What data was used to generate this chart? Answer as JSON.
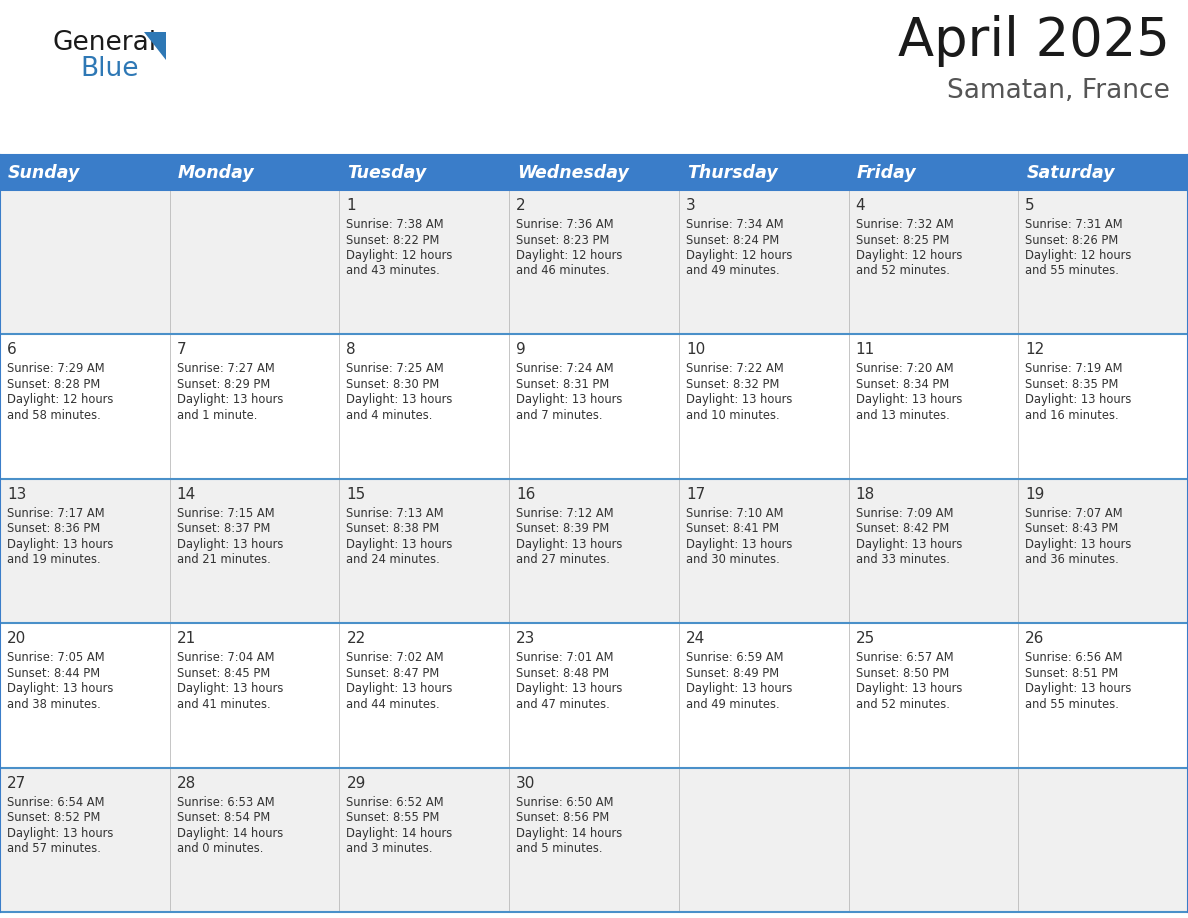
{
  "title": "April 2025",
  "subtitle": "Samatan, France",
  "header_bg_color": "#3A7DC9",
  "header_text_color": "#FFFFFF",
  "row_bg_even": "#F0F0F0",
  "row_bg_odd": "#FFFFFF",
  "border_color": "#3A7DC9",
  "row_divider_color": "#4A90C9",
  "col_divider_color": "#BBBBBB",
  "day_headers": [
    "Sunday",
    "Monday",
    "Tuesday",
    "Wednesday",
    "Thursday",
    "Friday",
    "Saturday"
  ],
  "days": [
    {
      "day": 1,
      "col": 2,
      "row": 0,
      "sunrise": "7:38 AM",
      "sunset": "8:22 PM",
      "daylight_line1": "12 hours",
      "daylight_line2": "and 43 minutes."
    },
    {
      "day": 2,
      "col": 3,
      "row": 0,
      "sunrise": "7:36 AM",
      "sunset": "8:23 PM",
      "daylight_line1": "12 hours",
      "daylight_line2": "and 46 minutes."
    },
    {
      "day": 3,
      "col": 4,
      "row": 0,
      "sunrise": "7:34 AM",
      "sunset": "8:24 PM",
      "daylight_line1": "12 hours",
      "daylight_line2": "and 49 minutes."
    },
    {
      "day": 4,
      "col": 5,
      "row": 0,
      "sunrise": "7:32 AM",
      "sunset": "8:25 PM",
      "daylight_line1": "12 hours",
      "daylight_line2": "and 52 minutes."
    },
    {
      "day": 5,
      "col": 6,
      "row": 0,
      "sunrise": "7:31 AM",
      "sunset": "8:26 PM",
      "daylight_line1": "12 hours",
      "daylight_line2": "and 55 minutes."
    },
    {
      "day": 6,
      "col": 0,
      "row": 1,
      "sunrise": "7:29 AM",
      "sunset": "8:28 PM",
      "daylight_line1": "12 hours",
      "daylight_line2": "and 58 minutes."
    },
    {
      "day": 7,
      "col": 1,
      "row": 1,
      "sunrise": "7:27 AM",
      "sunset": "8:29 PM",
      "daylight_line1": "13 hours",
      "daylight_line2": "and 1 minute."
    },
    {
      "day": 8,
      "col": 2,
      "row": 1,
      "sunrise": "7:25 AM",
      "sunset": "8:30 PM",
      "daylight_line1": "13 hours",
      "daylight_line2": "and 4 minutes."
    },
    {
      "day": 9,
      "col": 3,
      "row": 1,
      "sunrise": "7:24 AM",
      "sunset": "8:31 PM",
      "daylight_line1": "13 hours",
      "daylight_line2": "and 7 minutes."
    },
    {
      "day": 10,
      "col": 4,
      "row": 1,
      "sunrise": "7:22 AM",
      "sunset": "8:32 PM",
      "daylight_line1": "13 hours",
      "daylight_line2": "and 10 minutes."
    },
    {
      "day": 11,
      "col": 5,
      "row": 1,
      "sunrise": "7:20 AM",
      "sunset": "8:34 PM",
      "daylight_line1": "13 hours",
      "daylight_line2": "and 13 minutes."
    },
    {
      "day": 12,
      "col": 6,
      "row": 1,
      "sunrise": "7:19 AM",
      "sunset": "8:35 PM",
      "daylight_line1": "13 hours",
      "daylight_line2": "and 16 minutes."
    },
    {
      "day": 13,
      "col": 0,
      "row": 2,
      "sunrise": "7:17 AM",
      "sunset": "8:36 PM",
      "daylight_line1": "13 hours",
      "daylight_line2": "and 19 minutes."
    },
    {
      "day": 14,
      "col": 1,
      "row": 2,
      "sunrise": "7:15 AM",
      "sunset": "8:37 PM",
      "daylight_line1": "13 hours",
      "daylight_line2": "and 21 minutes."
    },
    {
      "day": 15,
      "col": 2,
      "row": 2,
      "sunrise": "7:13 AM",
      "sunset": "8:38 PM",
      "daylight_line1": "13 hours",
      "daylight_line2": "and 24 minutes."
    },
    {
      "day": 16,
      "col": 3,
      "row": 2,
      "sunrise": "7:12 AM",
      "sunset": "8:39 PM",
      "daylight_line1": "13 hours",
      "daylight_line2": "and 27 minutes."
    },
    {
      "day": 17,
      "col": 4,
      "row": 2,
      "sunrise": "7:10 AM",
      "sunset": "8:41 PM",
      "daylight_line1": "13 hours",
      "daylight_line2": "and 30 minutes."
    },
    {
      "day": 18,
      "col": 5,
      "row": 2,
      "sunrise": "7:09 AM",
      "sunset": "8:42 PM",
      "daylight_line1": "13 hours",
      "daylight_line2": "and 33 minutes."
    },
    {
      "day": 19,
      "col": 6,
      "row": 2,
      "sunrise": "7:07 AM",
      "sunset": "8:43 PM",
      "daylight_line1": "13 hours",
      "daylight_line2": "and 36 minutes."
    },
    {
      "day": 20,
      "col": 0,
      "row": 3,
      "sunrise": "7:05 AM",
      "sunset": "8:44 PM",
      "daylight_line1": "13 hours",
      "daylight_line2": "and 38 minutes."
    },
    {
      "day": 21,
      "col": 1,
      "row": 3,
      "sunrise": "7:04 AM",
      "sunset": "8:45 PM",
      "daylight_line1": "13 hours",
      "daylight_line2": "and 41 minutes."
    },
    {
      "day": 22,
      "col": 2,
      "row": 3,
      "sunrise": "7:02 AM",
      "sunset": "8:47 PM",
      "daylight_line1": "13 hours",
      "daylight_line2": "and 44 minutes."
    },
    {
      "day": 23,
      "col": 3,
      "row": 3,
      "sunrise": "7:01 AM",
      "sunset": "8:48 PM",
      "daylight_line1": "13 hours",
      "daylight_line2": "and 47 minutes."
    },
    {
      "day": 24,
      "col": 4,
      "row": 3,
      "sunrise": "6:59 AM",
      "sunset": "8:49 PM",
      "daylight_line1": "13 hours",
      "daylight_line2": "and 49 minutes."
    },
    {
      "day": 25,
      "col": 5,
      "row": 3,
      "sunrise": "6:57 AM",
      "sunset": "8:50 PM",
      "daylight_line1": "13 hours",
      "daylight_line2": "and 52 minutes."
    },
    {
      "day": 26,
      "col": 6,
      "row": 3,
      "sunrise": "6:56 AM",
      "sunset": "8:51 PM",
      "daylight_line1": "13 hours",
      "daylight_line2": "and 55 minutes."
    },
    {
      "day": 27,
      "col": 0,
      "row": 4,
      "sunrise": "6:54 AM",
      "sunset": "8:52 PM",
      "daylight_line1": "13 hours",
      "daylight_line2": "and 57 minutes."
    },
    {
      "day": 28,
      "col": 1,
      "row": 4,
      "sunrise": "6:53 AM",
      "sunset": "8:54 PM",
      "daylight_line1": "14 hours",
      "daylight_line2": "and 0 minutes."
    },
    {
      "day": 29,
      "col": 2,
      "row": 4,
      "sunrise": "6:52 AM",
      "sunset": "8:55 PM",
      "daylight_line1": "14 hours",
      "daylight_line2": "and 3 minutes."
    },
    {
      "day": 30,
      "col": 3,
      "row": 4,
      "sunrise": "6:50 AM",
      "sunset": "8:56 PM",
      "daylight_line1": "14 hours",
      "daylight_line2": "and 5 minutes."
    }
  ]
}
